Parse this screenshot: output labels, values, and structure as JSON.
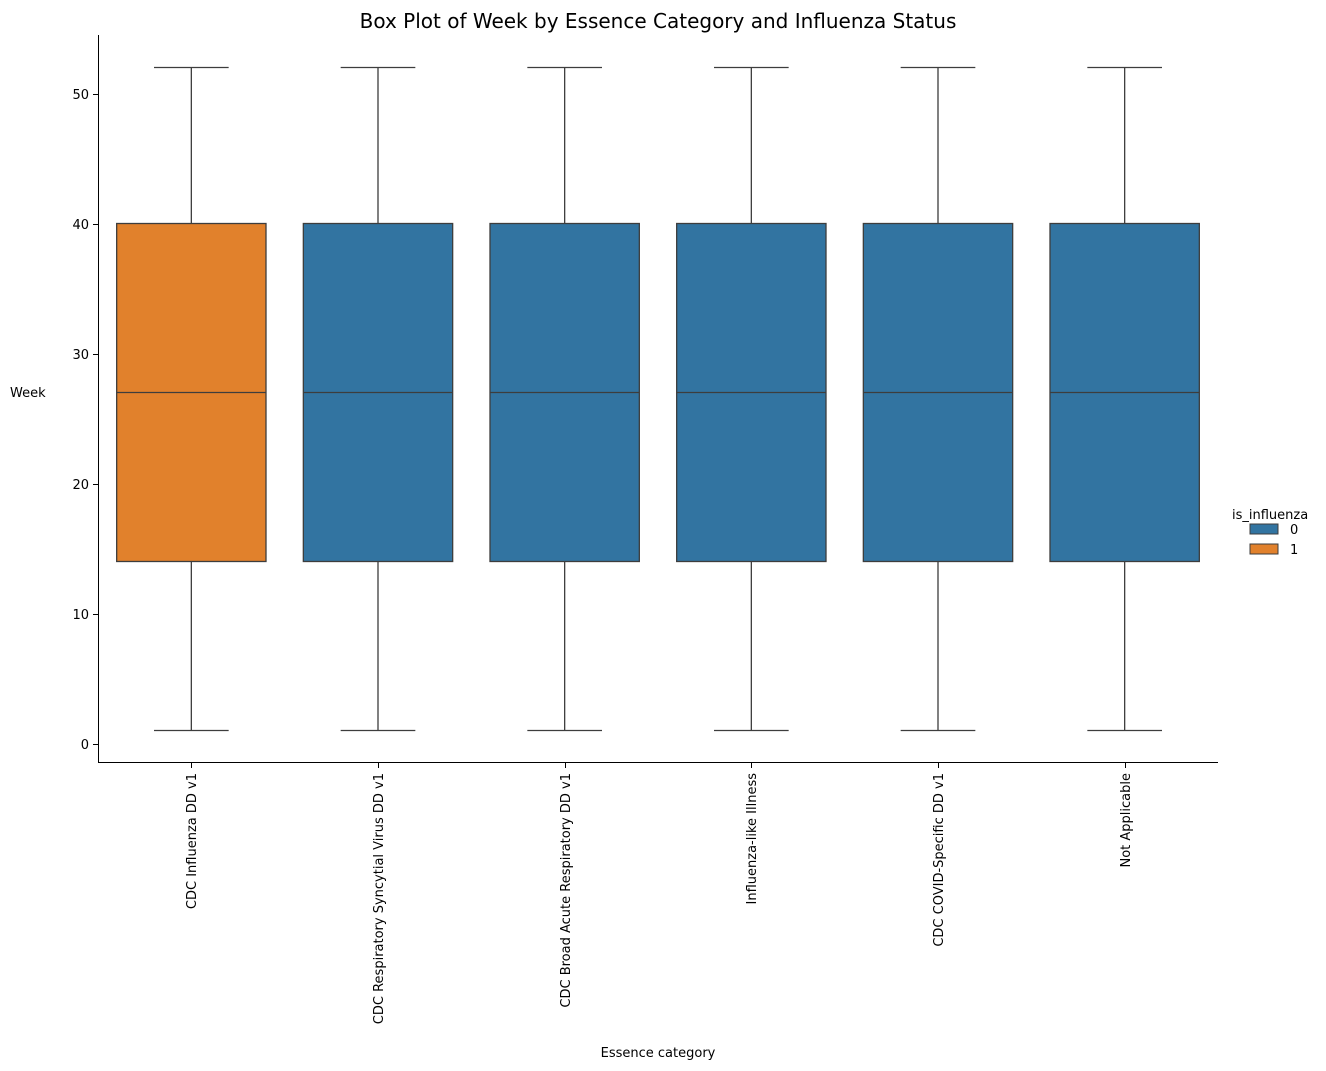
{
  "colors": {
    "hue_0": "#3274a1",
    "hue_1": "#e1812c",
    "line": "#3d3d3d",
    "axis": "#000000"
  },
  "chart_data": {
    "type": "box",
    "title": "Box Plot of Week by Essence Category and Influenza Status",
    "xlabel": "Essence category",
    "ylabel": "Week",
    "ylim": [
      -1.5,
      54.5
    ],
    "yticks": [
      0,
      10,
      20,
      30,
      40,
      50
    ],
    "grid": false,
    "legend": {
      "title": "is_influenza",
      "placement": "right",
      "entries": [
        {
          "label": "0",
          "hue": 0
        },
        {
          "label": "1",
          "hue": 1
        }
      ]
    },
    "categories": [
      "CDC Influenza DD v1",
      "CDC Respiratory Syncytial Virus DD v1",
      "CDC Broad Acute Respiratory DD v1",
      "Influenza-like Illness",
      "CDC COVID-Specific DD v1",
      "Not Applicable"
    ],
    "boxes": [
      {
        "category": "CDC Influenza DD v1",
        "is_influenza": 1,
        "whisker_low": 1,
        "q1": 14,
        "median": 27,
        "q3": 40,
        "whisker_high": 52
      },
      {
        "category": "CDC Respiratory Syncytial Virus DD v1",
        "is_influenza": 0,
        "whisker_low": 1,
        "q1": 14,
        "median": 27,
        "q3": 40,
        "whisker_high": 52
      },
      {
        "category": "CDC Broad Acute Respiratory DD v1",
        "is_influenza": 0,
        "whisker_low": 1,
        "q1": 14,
        "median": 27,
        "q3": 40,
        "whisker_high": 52
      },
      {
        "category": "Influenza-like Illness",
        "is_influenza": 0,
        "whisker_low": 1,
        "q1": 14,
        "median": 27,
        "q3": 40,
        "whisker_high": 52
      },
      {
        "category": "CDC COVID-Specific DD v1",
        "is_influenza": 0,
        "whisker_low": 1,
        "q1": 14,
        "median": 27,
        "q3": 40,
        "whisker_high": 52
      },
      {
        "category": "Not Applicable",
        "is_influenza": 0,
        "whisker_low": 1,
        "q1": 14,
        "median": 27,
        "q3": 40,
        "whisker_high": 52
      }
    ]
  }
}
